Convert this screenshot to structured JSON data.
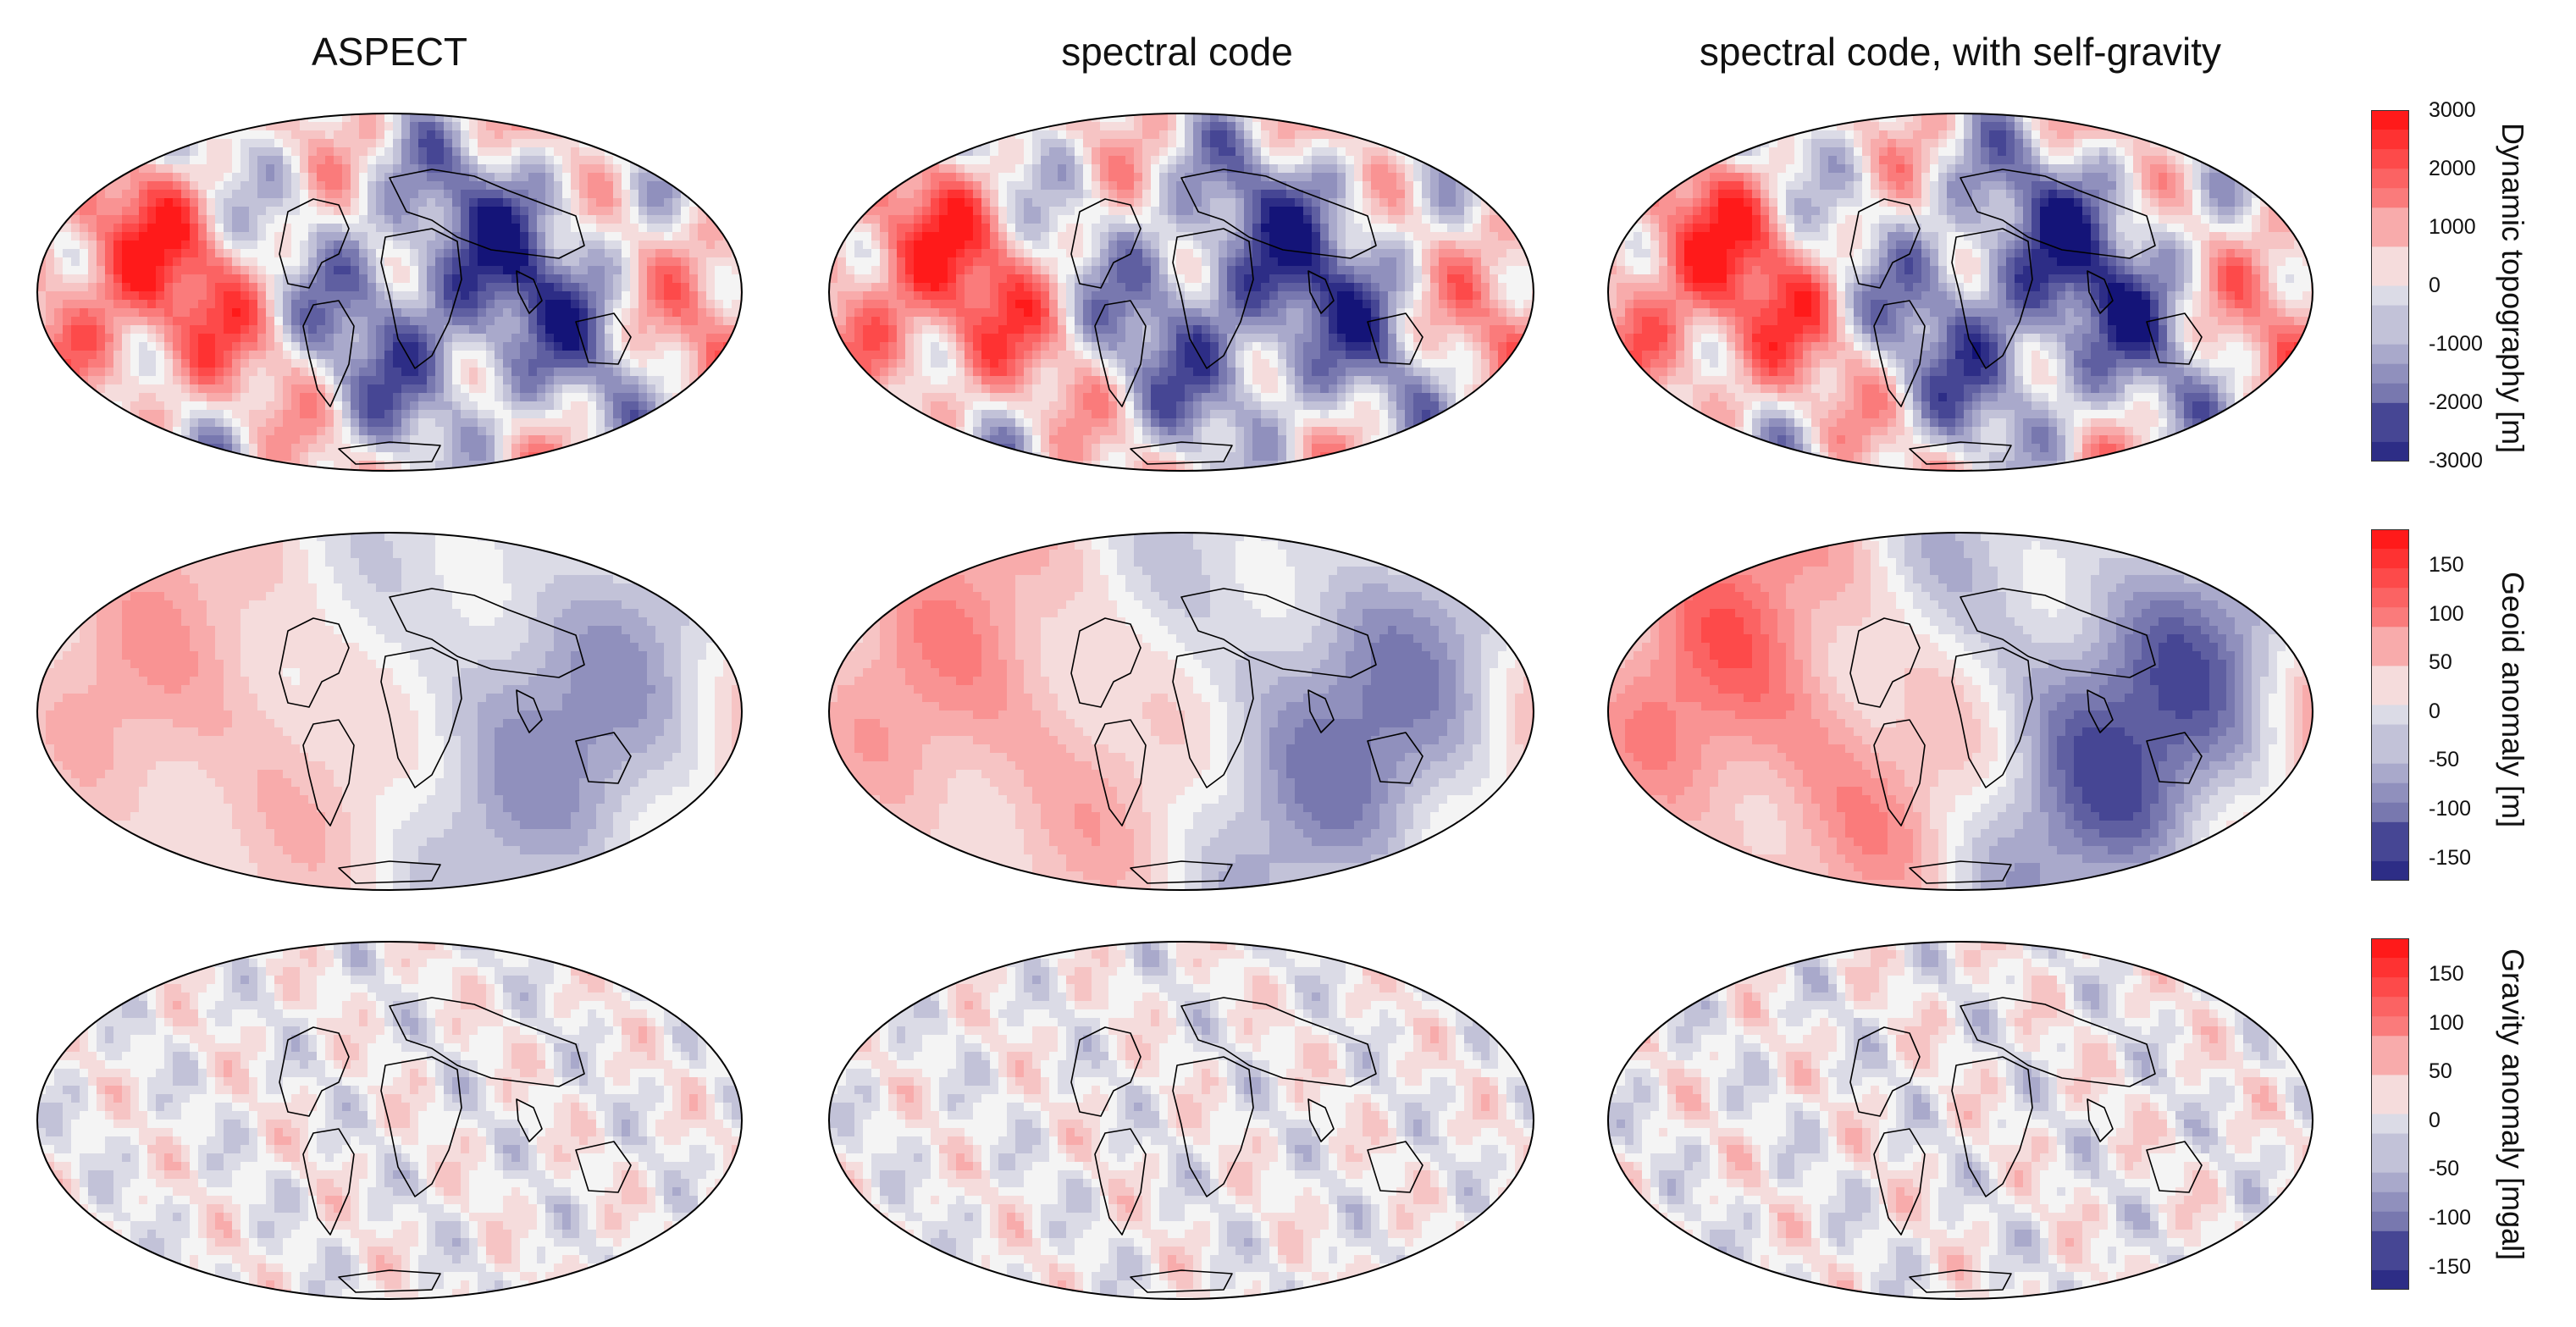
{
  "columns": [
    {
      "title": "ASPECT"
    },
    {
      "title": "spectral code"
    },
    {
      "title": "spectral code, with self-gravity"
    }
  ],
  "rows": [
    {
      "colorbar_label": "Dynamic topography [m]",
      "ticks": [
        "3000",
        "2000",
        "1000",
        "0",
        "-1000",
        "-2000",
        "-3000"
      ],
      "range": [
        -3000,
        3000
      ],
      "levels": 18,
      "amplitude": [
        0.95,
        0.95,
        0.98
      ]
    },
    {
      "colorbar_label": "Geoid anomaly [m]",
      "ticks": [
        "150",
        "100",
        "50",
        "0",
        "-50",
        "-100",
        "-150"
      ],
      "range": [
        -180,
        180
      ],
      "levels": 18,
      "amplitude": [
        0.45,
        0.55,
        0.75
      ]
    },
    {
      "colorbar_label": "Gravity anomaly [mgal]",
      "ticks": [
        "150",
        "100",
        "50",
        "0",
        "-50",
        "-100",
        "-150"
      ],
      "range": [
        -180,
        180
      ],
      "levels": 18,
      "amplitude": [
        0.3,
        0.3,
        0.33
      ]
    }
  ],
  "colors": {
    "positive_max": "#ff1a1a",
    "zero": "#f4f4f4",
    "negative_max": "#141478",
    "coastline": "#000000",
    "outline": "#000000"
  },
  "projection": "Mollweide"
}
